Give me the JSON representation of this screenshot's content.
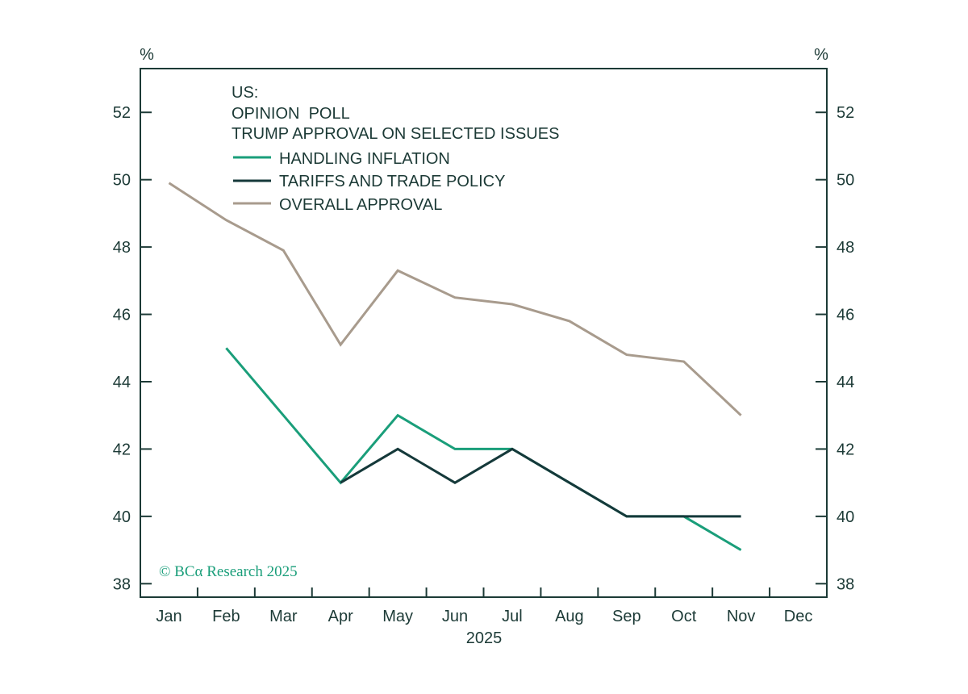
{
  "chart_data": {
    "type": "line",
    "title_lines": [
      "US:",
      "OPINION  POLL",
      "TRUMP APPROVAL ON SELECTED ISSUES"
    ],
    "categories": [
      "Jan",
      "Feb",
      "Mar",
      "Apr",
      "May",
      "Jun",
      "Jul",
      "Aug",
      "Sep",
      "Oct",
      "Nov",
      "Dec"
    ],
    "xlabel": "2025",
    "y_unit_left": "%",
    "y_unit_right": "%",
    "ylim": [
      37.6,
      53.3
    ],
    "yticks": [
      38,
      40,
      42,
      44,
      46,
      48,
      50,
      52
    ],
    "grid": false,
    "legend_position": "top-left",
    "series": [
      {
        "name": "HANDLING INFLATION",
        "color": "#1a9e7a",
        "values": [
          null,
          45,
          43,
          41,
          43,
          42,
          42,
          41,
          40,
          40,
          39,
          null
        ]
      },
      {
        "name": "TARIFFS AND TRADE POLICY",
        "color": "#15393a",
        "values": [
          null,
          null,
          null,
          41,
          42,
          41,
          42,
          41,
          40,
          40,
          40,
          null
        ]
      },
      {
        "name": "OVERALL APPROVAL",
        "color": "#a89b8d",
        "values": [
          49.9,
          48.8,
          47.9,
          45.1,
          47.3,
          46.5,
          46.3,
          45.8,
          44.8,
          44.6,
          43,
          null
        ]
      }
    ],
    "credit": "© BCα Research 2025"
  },
  "colors": {
    "axis": "#1c3a36",
    "text": "#1c3a36",
    "credit": "#1a9e7a"
  }
}
